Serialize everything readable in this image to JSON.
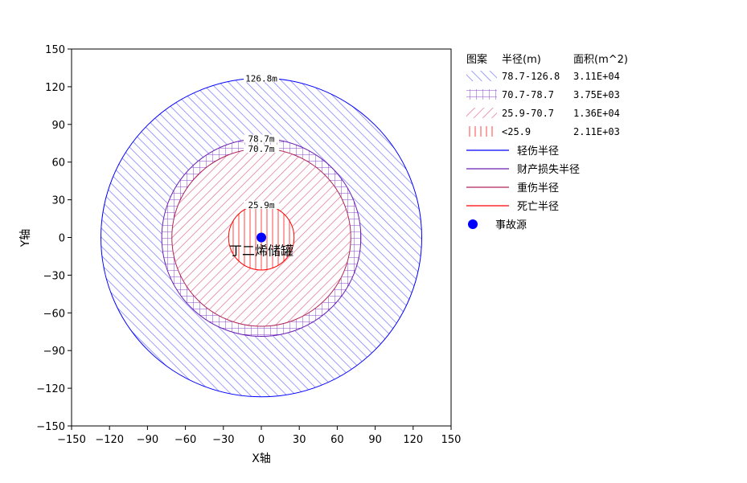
{
  "chart_data": {
    "type": "scatter",
    "xlabel": "X轴",
    "ylabel": "Y轴",
    "xlim": [
      -150,
      150
    ],
    "ylim": [
      -150,
      150
    ],
    "xticks": [
      -150,
      -120,
      -90,
      -60,
      -30,
      0,
      30,
      60,
      90,
      120,
      150
    ],
    "yticks": [
      -150,
      -120,
      -90,
      -60,
      -30,
      0,
      30,
      60,
      90,
      120,
      150
    ],
    "x_tick_labels": [
      "−150",
      "−120",
      "−90",
      "−60",
      "−30",
      "0",
      "30",
      "60",
      "90",
      "120",
      "150"
    ],
    "y_tick_labels": [
      "−150",
      "−120",
      "−90",
      "−60",
      "−30",
      "0",
      "30",
      "60",
      "90",
      "120",
      "150"
    ],
    "grid": false,
    "legend_position": "right",
    "center": {
      "x": 0,
      "y": 0
    },
    "circles": [
      {
        "name": "轻伤半径",
        "radius": 126.8,
        "label": "126.8m",
        "color": "#0000ff"
      },
      {
        "name": "财产损失半径",
        "radius": 78.7,
        "label": "78.7m",
        "color": "#6a1fb5"
      },
      {
        "name": "重伤半径",
        "radius": 70.7,
        "label": "70.7m",
        "color": "#b0245a"
      },
      {
        "name": "死亡半径",
        "radius": 25.9,
        "label": "25.9m",
        "color": "#ff0000"
      }
    ],
    "zones": [
      {
        "range": "78.7-126.8",
        "area": "3.11E+04",
        "inner": 78.7,
        "outer": 126.8,
        "pattern": "diag-fwd",
        "color": "#7777ff"
      },
      {
        "range": "70.7-78.7",
        "area": "3.75E+03",
        "inner": 70.7,
        "outer": 78.7,
        "pattern": "grid",
        "color": "#8844cc"
      },
      {
        "range": "25.9-70.7",
        "area": "1.36E+04",
        "inner": 25.9,
        "outer": 70.7,
        "pattern": "diag-back",
        "color": "#e07090"
      },
      {
        "range": "<25.9",
        "area": "2.11E+03",
        "inner": 0,
        "outer": 25.9,
        "pattern": "vertical",
        "color": "#ff4444"
      }
    ],
    "source": {
      "name": "事故源",
      "x": 0,
      "y": 0,
      "label": "丁二烯储罐",
      "color": "#0000ff"
    },
    "legend": {
      "header_pattern": "图案",
      "header_radius": "半径(m)",
      "header_area": "面积(m^2)"
    }
  }
}
